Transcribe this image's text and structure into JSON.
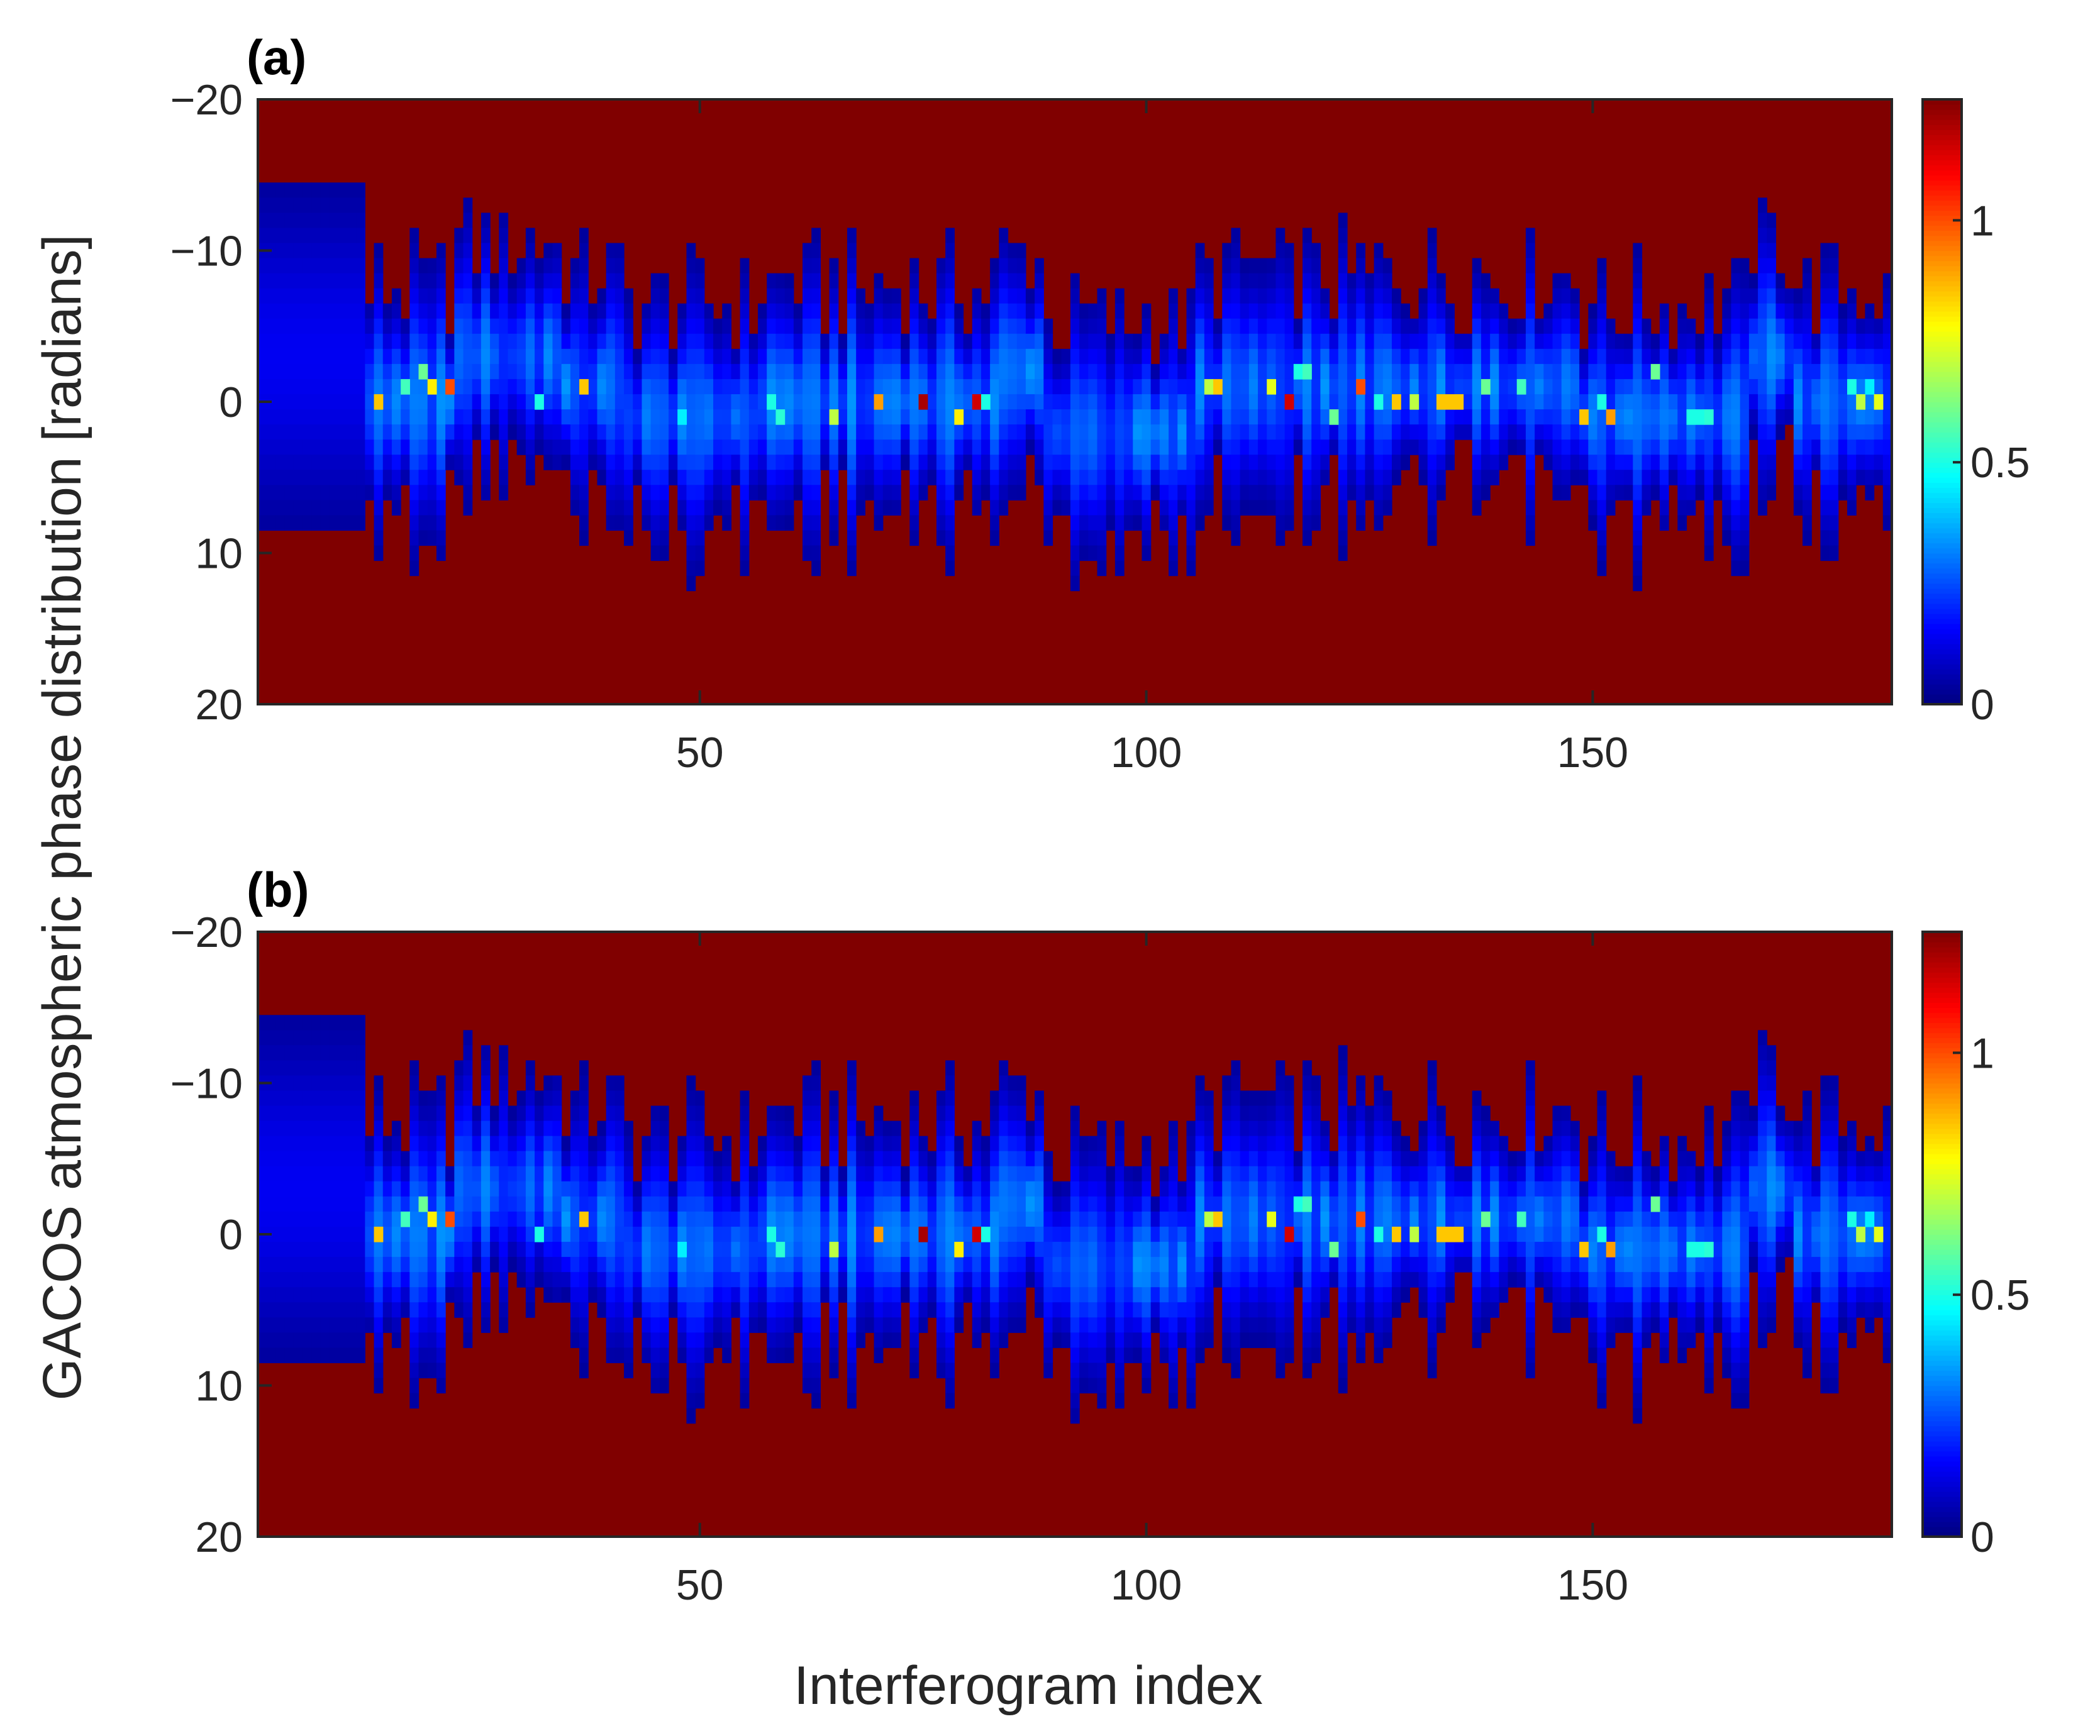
{
  "figure": {
    "ylabel": "GACOS atmospheric phase distribution [radians]",
    "xlabel": "Interferogram index"
  },
  "chart_data": [
    {
      "type": "heatmap",
      "panel_label": "(a)",
      "title": "",
      "xlabel": "Interferogram index",
      "ylabel": "GACOS atmospheric phase distribution [radians]",
      "x_range": [
        1,
        183
      ],
      "ylim": [
        -20,
        20
      ],
      "y_reversed": true,
      "xticks": [
        50,
        100,
        150
      ],
      "yticks": [
        -20,
        -10,
        0,
        10,
        20
      ],
      "colormap": "jet",
      "colorbar": {
        "limits": [
          0,
          1.25
        ],
        "ticks": [
          0,
          0.5,
          1
        ]
      },
      "background_value": 0,
      "bin_width_radians": 1,
      "peak_location_radians_by_index": [
        {
          "x_from": 1,
          "x_to": 12,
          "y": -3
        },
        {
          "x_from": 13,
          "x_to": 22,
          "y": 0
        },
        {
          "x_from": 23,
          "x_to": 34,
          "y": -3
        },
        {
          "x_from": 35,
          "x_to": 41,
          "y": -1
        },
        {
          "x_from": 42,
          "x_to": 56,
          "y": 1
        },
        {
          "x_from": 57,
          "x_to": 70,
          "y": 0
        },
        {
          "x_from": 71,
          "x_to": 83,
          "y": 0
        },
        {
          "x_from": 84,
          "x_to": 88,
          "y": -2
        },
        {
          "x_from": 89,
          "x_to": 105,
          "y": 2
        },
        {
          "x_from": 106,
          "x_to": 148,
          "y": -1
        },
        {
          "x_from": 149,
          "x_to": 167,
          "y": 1
        },
        {
          "x_from": 168,
          "x_to": 172,
          "y": -3
        },
        {
          "x_from": 173,
          "x_to": 183,
          "y": 0
        }
      ],
      "high_density_bins": [
        {
          "x": 14,
          "y": 0,
          "value": 0.85
        },
        {
          "x": 17,
          "y": -1,
          "value": 0.55
        },
        {
          "x": 19,
          "y": -2,
          "value": 0.6
        },
        {
          "x": 20,
          "y": -1,
          "value": 0.8
        },
        {
          "x": 22,
          "y": -1,
          "value": 1.0
        },
        {
          "x": 32,
          "y": 0,
          "value": 0.5
        },
        {
          "x": 37,
          "y": -1,
          "value": 0.85
        },
        {
          "x": 48,
          "y": 1,
          "value": 0.45
        },
        {
          "x": 58,
          "y": 0,
          "value": 0.5
        },
        {
          "x": 59,
          "y": 1,
          "value": 0.52
        },
        {
          "x": 65,
          "y": 1,
          "value": 0.7
        },
        {
          "x": 70,
          "y": 0,
          "value": 0.9
        },
        {
          "x": 75,
          "y": 0,
          "value": 1.2
        },
        {
          "x": 79,
          "y": 1,
          "value": 0.8
        },
        {
          "x": 81,
          "y": 0,
          "value": 1.15
        },
        {
          "x": 82,
          "y": 0,
          "value": 0.5
        },
        {
          "x": 107,
          "y": -1,
          "value": 0.7
        },
        {
          "x": 108,
          "y": -1,
          "value": 0.85
        },
        {
          "x": 114,
          "y": -1,
          "value": 0.75
        },
        {
          "x": 116,
          "y": 0,
          "value": 1.15
        },
        {
          "x": 117,
          "y": -2,
          "value": 0.5
        },
        {
          "x": 118,
          "y": -2,
          "value": 0.55
        },
        {
          "x": 121,
          "y": 1,
          "value": 0.6
        },
        {
          "x": 124,
          "y": -1,
          "value": 1.0
        },
        {
          "x": 126,
          "y": 0,
          "value": 0.5
        },
        {
          "x": 128,
          "y": 0,
          "value": 0.85
        },
        {
          "x": 130,
          "y": 0,
          "value": 0.7
        },
        {
          "x": 133,
          "y": 0,
          "value": 0.85
        },
        {
          "x": 134,
          "y": 0,
          "value": 0.85
        },
        {
          "x": 135,
          "y": 0,
          "value": 0.85
        },
        {
          "x": 138,
          "y": -1,
          "value": 0.6
        },
        {
          "x": 142,
          "y": -1,
          "value": 0.55
        },
        {
          "x": 149,
          "y": 1,
          "value": 0.85
        },
        {
          "x": 151,
          "y": 0,
          "value": 0.5
        },
        {
          "x": 152,
          "y": 1,
          "value": 0.9
        },
        {
          "x": 157,
          "y": -2,
          "value": 0.6
        },
        {
          "x": 161,
          "y": 1,
          "value": 0.5
        },
        {
          "x": 162,
          "y": 1,
          "value": 0.5
        },
        {
          "x": 163,
          "y": 1,
          "value": 0.52
        },
        {
          "x": 179,
          "y": -1,
          "value": 0.5
        },
        {
          "x": 180,
          "y": 0,
          "value": 0.7
        },
        {
          "x": 181,
          "y": -1,
          "value": 0.45
        },
        {
          "x": 182,
          "y": 0,
          "value": 0.75
        }
      ]
    },
    {
      "type": "heatmap",
      "panel_label": "(b)",
      "title": "",
      "xlabel": "Interferogram index",
      "ylabel": "GACOS atmospheric phase distribution [radians]",
      "x_range": [
        1,
        183
      ],
      "ylim": [
        -20,
        20
      ],
      "y_reversed": true,
      "xticks": [
        50,
        100,
        150
      ],
      "yticks": [
        -20,
        -10,
        0,
        10,
        20
      ],
      "colormap": "jet",
      "colorbar": {
        "limits": [
          0,
          1.25
        ],
        "ticks": [
          0,
          0.5,
          1
        ]
      },
      "background_value": 0,
      "bin_width_radians": 1,
      "peak_location_radians_by_index": [
        {
          "x_from": 1,
          "x_to": 12,
          "y": -3
        },
        {
          "x_from": 13,
          "x_to": 22,
          "y": 0
        },
        {
          "x_from": 23,
          "x_to": 34,
          "y": -3
        },
        {
          "x_from": 35,
          "x_to": 41,
          "y": -1
        },
        {
          "x_from": 42,
          "x_to": 56,
          "y": 1
        },
        {
          "x_from": 57,
          "x_to": 70,
          "y": 0
        },
        {
          "x_from": 71,
          "x_to": 83,
          "y": 0
        },
        {
          "x_from": 84,
          "x_to": 88,
          "y": -2
        },
        {
          "x_from": 89,
          "x_to": 105,
          "y": 2
        },
        {
          "x_from": 106,
          "x_to": 148,
          "y": -1
        },
        {
          "x_from": 149,
          "x_to": 167,
          "y": 1
        },
        {
          "x_from": 168,
          "x_to": 172,
          "y": -3
        },
        {
          "x_from": 173,
          "x_to": 183,
          "y": 0
        }
      ],
      "high_density_bins": [
        {
          "x": 14,
          "y": 0,
          "value": 0.85
        },
        {
          "x": 17,
          "y": -1,
          "value": 0.55
        },
        {
          "x": 19,
          "y": -2,
          "value": 0.6
        },
        {
          "x": 20,
          "y": -1,
          "value": 0.8
        },
        {
          "x": 22,
          "y": -1,
          "value": 1.0
        },
        {
          "x": 32,
          "y": 0,
          "value": 0.5
        },
        {
          "x": 37,
          "y": -1,
          "value": 0.85
        },
        {
          "x": 48,
          "y": 1,
          "value": 0.45
        },
        {
          "x": 58,
          "y": 0,
          "value": 0.5
        },
        {
          "x": 59,
          "y": 1,
          "value": 0.52
        },
        {
          "x": 65,
          "y": 1,
          "value": 0.7
        },
        {
          "x": 70,
          "y": 0,
          "value": 0.9
        },
        {
          "x": 75,
          "y": 0,
          "value": 1.2
        },
        {
          "x": 79,
          "y": 1,
          "value": 0.8
        },
        {
          "x": 81,
          "y": 0,
          "value": 1.15
        },
        {
          "x": 82,
          "y": 0,
          "value": 0.5
        },
        {
          "x": 107,
          "y": -1,
          "value": 0.7
        },
        {
          "x": 108,
          "y": -1,
          "value": 0.85
        },
        {
          "x": 114,
          "y": -1,
          "value": 0.75
        },
        {
          "x": 116,
          "y": 0,
          "value": 1.15
        },
        {
          "x": 117,
          "y": -2,
          "value": 0.5
        },
        {
          "x": 118,
          "y": -2,
          "value": 0.55
        },
        {
          "x": 121,
          "y": 1,
          "value": 0.6
        },
        {
          "x": 124,
          "y": -1,
          "value": 1.0
        },
        {
          "x": 126,
          "y": 0,
          "value": 0.5
        },
        {
          "x": 128,
          "y": 0,
          "value": 0.85
        },
        {
          "x": 130,
          "y": 0,
          "value": 0.7
        },
        {
          "x": 133,
          "y": 0,
          "value": 0.85
        },
        {
          "x": 134,
          "y": 0,
          "value": 0.85
        },
        {
          "x": 135,
          "y": 0,
          "value": 0.85
        },
        {
          "x": 138,
          "y": -1,
          "value": 0.6
        },
        {
          "x": 142,
          "y": -1,
          "value": 0.55
        },
        {
          "x": 149,
          "y": 1,
          "value": 0.85
        },
        {
          "x": 151,
          "y": 0,
          "value": 0.5
        },
        {
          "x": 152,
          "y": 1,
          "value": 0.9
        },
        {
          "x": 157,
          "y": -2,
          "value": 0.6
        },
        {
          "x": 161,
          "y": 1,
          "value": 0.5
        },
        {
          "x": 162,
          "y": 1,
          "value": 0.5
        },
        {
          "x": 163,
          "y": 1,
          "value": 0.52
        },
        {
          "x": 179,
          "y": -1,
          "value": 0.5
        },
        {
          "x": 180,
          "y": 0,
          "value": 0.7
        },
        {
          "x": 181,
          "y": -1,
          "value": 0.45
        },
        {
          "x": 182,
          "y": 0,
          "value": 0.75
        }
      ]
    }
  ]
}
